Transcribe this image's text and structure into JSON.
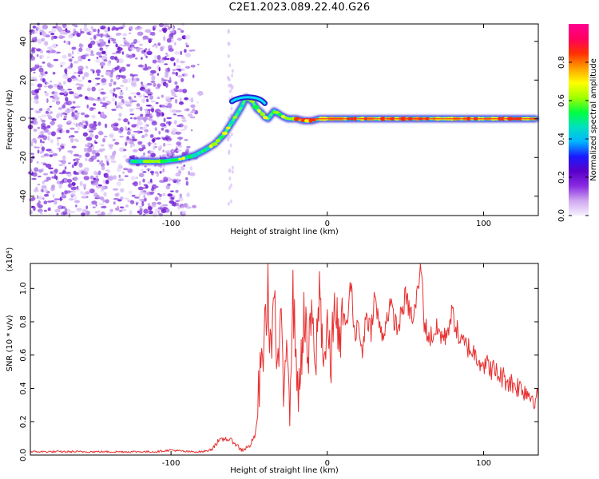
{
  "figure": {
    "title": "C2E1.2023.089.22.40.G26"
  },
  "chart_data": [
    {
      "type": "heatmap",
      "xlabel": "Height of straight line (km)",
      "ylabel": "Frequency (Hz)",
      "xlim": [
        -190,
        135
      ],
      "ylim": [
        -50,
        49
      ],
      "xticks": [
        -100,
        0,
        100
      ],
      "yticks": [
        -40,
        -20,
        0,
        20,
        40
      ],
      "grid": false,
      "colorbar": {
        "label": "Normalized spectral amplitude",
        "range": [
          0,
          1
        ],
        "ticks": [
          0.0,
          0.2,
          0.4,
          0.6,
          0.8
        ],
        "colormap": [
          "#f5f0ff",
          "#cfa8f0",
          "#8a2be2",
          "#5a00c8",
          "#1a1aff",
          "#00b4ff",
          "#00e0c0",
          "#00ff40",
          "#a0ff00",
          "#ffff00",
          "#ffa000",
          "#ff3000",
          "#ff0060",
          "#ff0090"
        ]
      },
      "ridge": {
        "note_series": "dominant frequency track",
        "x": [
          -125,
          -115,
          -105,
          -95,
          -85,
          -78,
          -72,
          -66,
          -62,
          -58,
          -55,
          -52,
          -48,
          -45,
          -42,
          -40,
          -38,
          -36,
          -34,
          -32,
          -30,
          -28,
          -25,
          -20,
          -15,
          -10,
          -5,
          0,
          5,
          20,
          40,
          60,
          80,
          100,
          120,
          133
        ],
        "y": [
          -22,
          -22,
          -22,
          -21,
          -19,
          -16,
          -13,
          -8,
          -3,
          2,
          6,
          11,
          9,
          5,
          3,
          1,
          0,
          2,
          4,
          3,
          2,
          1,
          0,
          0,
          -1,
          -1,
          0,
          0,
          0,
          0,
          0,
          0,
          0,
          0,
          0,
          0
        ]
      },
      "noise_region": {
        "x": [
          -190,
          -80
        ],
        "y": [
          -50,
          49
        ]
      }
    },
    {
      "type": "line",
      "xlabel": "Height of straight line (km)",
      "ylabel": "SNR (10 * v/v)",
      "scale_note": "(x10⁴)",
      "xlim": [
        -190,
        135
      ],
      "ylim": [
        0.0,
        1.15
      ],
      "xticks": [
        -100,
        0,
        100
      ],
      "yticks": [
        0.0,
        0.2,
        0.4,
        0.6,
        0.8,
        1.0
      ],
      "grid": false,
      "color": "#e83030",
      "series": [
        {
          "x": [
            -190,
            -180,
            -170,
            -160,
            -150,
            -140,
            -130,
            -120,
            -110,
            -100,
            -90,
            -80,
            -75,
            -70,
            -65,
            -60,
            -55,
            -50,
            -46,
            -44,
            -42,
            -40,
            -38,
            -36,
            -34,
            -32,
            -30,
            -28,
            -26,
            -24,
            -22,
            -20,
            -18,
            -15,
            -12,
            -10,
            -8,
            -5,
            -2,
            0,
            2,
            5,
            8,
            10,
            12,
            15,
            18,
            20,
            22,
            25,
            28,
            30,
            35,
            40,
            45,
            50,
            55,
            58,
            60,
            62,
            65,
            70,
            75,
            80,
            85,
            90,
            95,
            100,
            105,
            110,
            115,
            120,
            125,
            130,
            135
          ],
          "y": [
            0.02,
            0.02,
            0.02,
            0.02,
            0.02,
            0.02,
            0.02,
            0.02,
            0.02,
            0.03,
            0.02,
            0.02,
            0.03,
            0.08,
            0.1,
            0.08,
            0.03,
            0.05,
            0.12,
            0.35,
            0.55,
            0.75,
            0.98,
            0.6,
            1.02,
            0.4,
            0.85,
            0.3,
            0.8,
            0.35,
            0.95,
            0.6,
            0.35,
            0.85,
            0.55,
            0.9,
            0.45,
            1.0,
            0.55,
            0.8,
            0.5,
            0.95,
            0.6,
            0.85,
            0.75,
            1.02,
            0.7,
            0.8,
            0.6,
            0.85,
            0.75,
            0.95,
            0.7,
            0.9,
            0.75,
            0.95,
            0.8,
            1.0,
            1.15,
            0.8,
            0.7,
            0.75,
            0.7,
            0.85,
            0.68,
            0.65,
            0.6,
            0.55,
            0.52,
            0.48,
            0.45,
            0.42,
            0.4,
            0.36,
            0.33
          ]
        }
      ]
    }
  ]
}
